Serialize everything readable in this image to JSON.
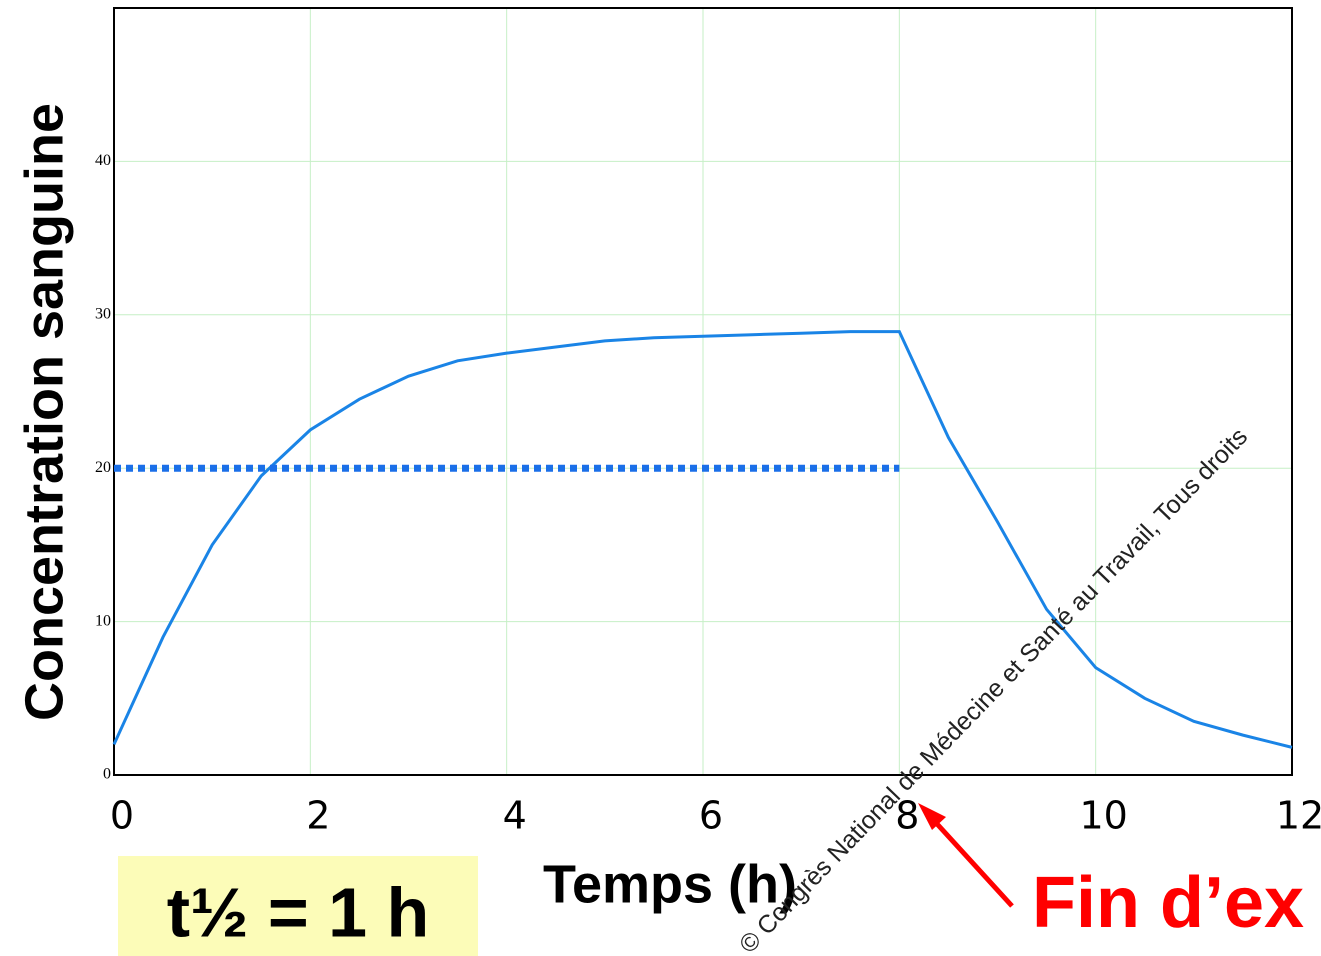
{
  "chart_data": {
    "type": "line",
    "xlabel": "Temps (h)",
    "ylabel": "Concentration sanguine",
    "xlim": [
      0,
      12
    ],
    "xticks": [
      0,
      2,
      4,
      6,
      8,
      10,
      12
    ],
    "ylim": [
      0,
      50
    ],
    "yticks": [
      0,
      10,
      20,
      30,
      40
    ],
    "grid": true,
    "grid_color": "#c6efc6",
    "series": [
      {
        "color": "#1a84e6",
        "style": "solid",
        "x": [
          0,
          0.5,
          1,
          1.5,
          2,
          2.5,
          3,
          3.5,
          4,
          4.5,
          5,
          5.5,
          6,
          6.5,
          7,
          7.5,
          8,
          8.5,
          9,
          9.5,
          10,
          10.5,
          11,
          11.5,
          12
        ],
        "values": [
          2,
          9,
          15,
          19.5,
          22.5,
          24.5,
          26,
          27,
          27.5,
          27.9,
          28.3,
          28.5,
          28.6,
          28.7,
          28.8,
          28.9,
          28.9,
          22,
          16.5,
          10.8,
          7,
          5,
          3.5,
          2.6,
          1.8
        ]
      },
      {
        "color": "#1a6fe8",
        "style": "dotted",
        "x": [
          0,
          8
        ],
        "values": [
          20,
          20
        ]
      }
    ],
    "annotations": [
      "t½ = 1 h",
      "Fin d’ex"
    ],
    "watermark": "© Congrès National de Médecine et Santé au Travail, Tous droits"
  }
}
